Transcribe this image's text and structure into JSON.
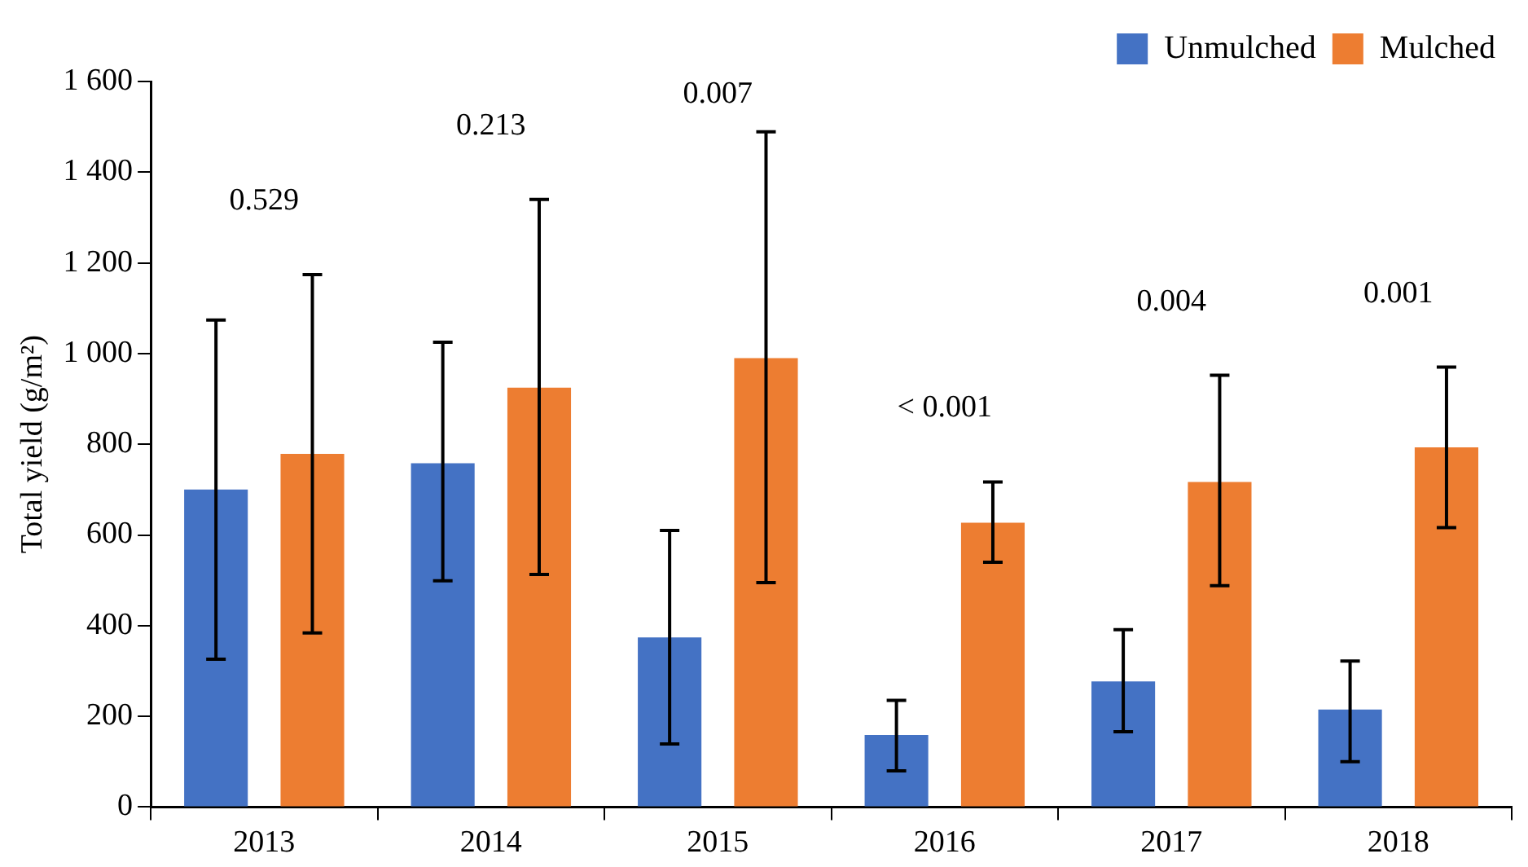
{
  "chart_data": {
    "type": "bar",
    "ylabel": "Total yield (g/m²)",
    "categories": [
      "2013",
      "2014",
      "2015",
      "2016",
      "2017",
      "2018"
    ],
    "series": [
      {
        "name": "Unmulched",
        "color": "#4472c4",
        "values": [
          700,
          758,
          374,
          159,
          277,
          215
        ],
        "errors": [
          [
            326,
            1074
          ],
          [
            499,
            1025
          ],
          [
            139,
            610
          ],
          [
            80,
            235
          ],
          [
            166,
            391
          ],
          [
            100,
            322
          ]
        ]
      },
      {
        "name": "Mulched",
        "color": "#ed7d31",
        "values": [
          779,
          925,
          990,
          627,
          717,
          793
        ],
        "errors": [
          [
            384,
            1174
          ],
          [
            513,
            1340
          ],
          [
            495,
            1489
          ],
          [
            540,
            717
          ],
          [
            488,
            952
          ],
          [
            616,
            970
          ]
        ]
      }
    ],
    "ylim": [
      0,
      1600
    ],
    "yticks": [
      0,
      200,
      400,
      600,
      800,
      {
        "value": 1000,
        "label": "1 000"
      },
      {
        "value": 1200,
        "label": "1 200"
      },
      {
        "value": 1400,
        "label": "1 400"
      },
      {
        "value": 1600,
        "label": "1 600"
      }
    ],
    "grid": false,
    "legend": "top right",
    "annotations": [
      "0.529",
      "0.213",
      "0.007",
      "< 0.001",
      "0.004",
      "0.001"
    ]
  }
}
